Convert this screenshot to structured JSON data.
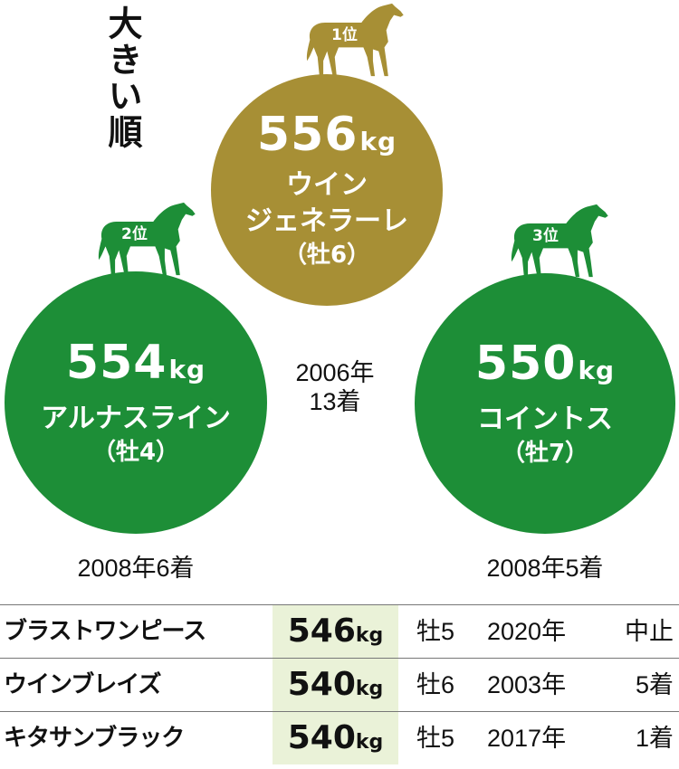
{
  "title": "大きい順",
  "colors": {
    "gold": "#a78f35",
    "green": "#1d8e37",
    "highlight": "#eaf2d8"
  },
  "ranking": [
    {
      "rank_label": "1位",
      "weight_value": "556",
      "unit": "kg",
      "name_line1": "ウイン",
      "name_line2": "ジェネラーレ",
      "sex_age": "（牡6）",
      "result_line1": "2006年",
      "result_line2": "13着"
    },
    {
      "rank_label": "2位",
      "weight_value": "554",
      "unit": "kg",
      "name_line1": "アルナスライン",
      "name_line2": "",
      "sex_age": "（牡4）",
      "result_line1": "2008年6着",
      "result_line2": ""
    },
    {
      "rank_label": "3位",
      "weight_value": "550",
      "unit": "kg",
      "name_line1": "コイントス",
      "name_line2": "",
      "sex_age": "（牡7）",
      "result_line1": "2008年5着",
      "result_line2": ""
    }
  ],
  "table": {
    "rows": [
      {
        "name": "ブラストワンピース",
        "weight_value": "546",
        "unit": "kg",
        "sex_age": "牡5",
        "year": "2020年",
        "result": "中止"
      },
      {
        "name": "ウインブレイズ",
        "weight_value": "540",
        "unit": "kg",
        "sex_age": "牡6",
        "year": "2003年",
        "result": "5着"
      },
      {
        "name": "キタサンブラック",
        "weight_value": "540",
        "unit": "kg",
        "sex_age": "牡5",
        "year": "2017年",
        "result": "1着"
      }
    ]
  }
}
